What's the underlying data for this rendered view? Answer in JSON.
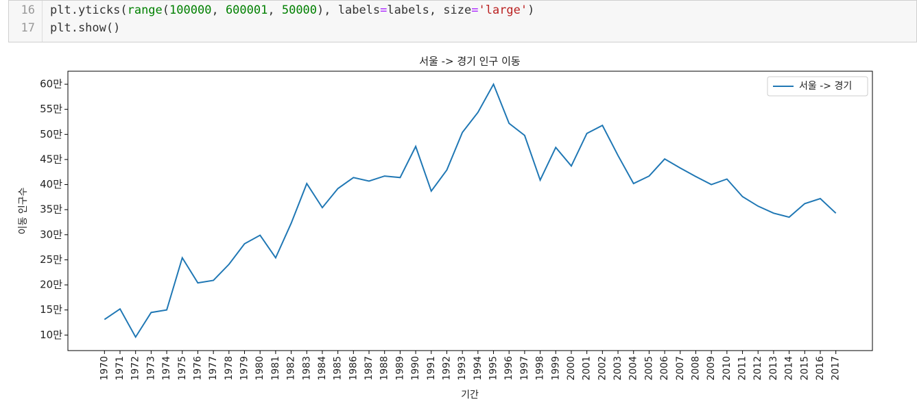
{
  "code": {
    "lines": [
      {
        "number": "16",
        "tokens": [
          "plt.yticks(",
          "range",
          "(",
          "100000",
          ", ",
          "600001",
          ", ",
          "50000",
          "), labels",
          "=",
          "labels, size",
          "=",
          "'large'",
          ")"
        ]
      },
      {
        "number": "17",
        "tokens": [
          "plt.show()"
        ]
      }
    ]
  },
  "chart_data": {
    "type": "line",
    "title": "서울 -> 경기 인구 이동",
    "xlabel": "기간",
    "ylabel": "이동 인구수",
    "categories": [
      "1970",
      "1971",
      "1972",
      "1973",
      "1974",
      "1975",
      "1976",
      "1977",
      "1978",
      "1979",
      "1980",
      "1981",
      "1982",
      "1983",
      "1984",
      "1985",
      "1986",
      "1987",
      "1988",
      "1989",
      "1990",
      "1991",
      "1992",
      "1993",
      "1994",
      "1995",
      "1996",
      "1997",
      "1998",
      "1999",
      "2000",
      "2001",
      "2002",
      "2003",
      "2004",
      "2005",
      "2006",
      "2007",
      "2008",
      "2009",
      "2010",
      "2011",
      "2012",
      "2013",
      "2014",
      "2015",
      "2016",
      "2017"
    ],
    "series": [
      {
        "name": "서울 -> 경기",
        "color": "#1f77b4",
        "values": [
          131000,
          152000,
          96000,
          145000,
          150000,
          254000,
          204000,
          209000,
          241000,
          282000,
          299000,
          254000,
          323000,
          402000,
          354000,
          392000,
          414000,
          407000,
          417000,
          414000,
          476000,
          387000,
          429000,
          504000,
          544000,
          600000,
          522000,
          498000,
          409000,
          474000,
          437000,
          502000,
          518000,
          458000,
          402000,
          417000,
          451000,
          433000,
          416000,
          400000,
          411000,
          376000,
          357000,
          343000,
          335000,
          362000,
          372000,
          343000
        ]
      }
    ],
    "ylim": [
      69000,
      626000
    ],
    "yticks": [
      {
        "value": 100000,
        "label": "10만"
      },
      {
        "value": 150000,
        "label": "15만"
      },
      {
        "value": 200000,
        "label": "20만"
      },
      {
        "value": 250000,
        "label": "25만"
      },
      {
        "value": 300000,
        "label": "30만"
      },
      {
        "value": 350000,
        "label": "35만"
      },
      {
        "value": 400000,
        "label": "40만"
      },
      {
        "value": 450000,
        "label": "45만"
      },
      {
        "value": 500000,
        "label": "50만"
      },
      {
        "value": 550000,
        "label": "55만"
      },
      {
        "value": 600000,
        "label": "60만"
      }
    ],
    "legend": "upper right"
  }
}
